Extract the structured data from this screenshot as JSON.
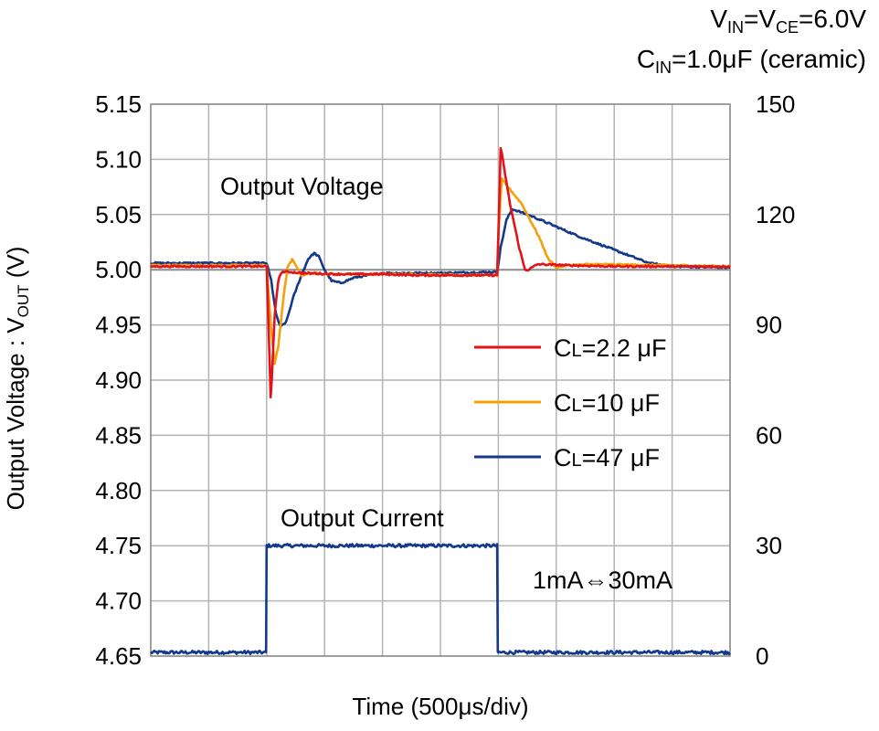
{
  "chart_data": {
    "type": "line",
    "conditions": {
      "line1": {
        "v": "V",
        "in": "IN",
        "eq1": "=V",
        "ce": "CE",
        "rest": "=6.0V"
      },
      "line2": {
        "c": "C",
        "in": "IN",
        "rest": "=1.0μF (ceramic)"
      }
    },
    "xlabel": "Time (500μs/div)",
    "ylabel": {
      "main": "Output Voltage : V",
      "sub": "OUT",
      "unit": " (V)"
    },
    "ylim": [
      4.65,
      5.15
    ],
    "y2lim": [
      0,
      150
    ],
    "yticks": [
      "5.15",
      "5.10",
      "5.05",
      "5.00",
      "4.95",
      "4.90",
      "4.85",
      "4.80",
      "4.75",
      "4.70",
      "4.65"
    ],
    "y2ticks": [
      "150",
      "120",
      "90",
      "60",
      "30",
      "0"
    ],
    "x_divisions": 10,
    "x_range_us": [
      0,
      5000
    ],
    "grid": true,
    "annotations": {
      "voltage": "Output Voltage",
      "current": "Output Current",
      "current_step": "1mA⇔30mA"
    },
    "series": [
      {
        "name": "CL=2.2 μF",
        "label_c": "C",
        "label_sub": "L",
        "label_rest": "=2.2 μF",
        "color": "#e3131b",
        "points": [
          [
            0,
            5.003
          ],
          [
            1000,
            5.003
          ],
          [
            1010,
            4.97
          ],
          [
            1025,
            4.92
          ],
          [
            1035,
            4.885
          ],
          [
            1045,
            4.9
          ],
          [
            1070,
            4.96
          ],
          [
            1100,
            4.99
          ],
          [
            1130,
            4.998
          ],
          [
            1200,
            4.998
          ],
          [
            1300,
            4.997
          ],
          [
            1600,
            4.996
          ],
          [
            2000,
            4.996
          ],
          [
            2300,
            4.995
          ],
          [
            2990,
            4.995
          ],
          [
            3005,
            5.05
          ],
          [
            3020,
            5.11
          ],
          [
            3030,
            5.105
          ],
          [
            3100,
            5.06
          ],
          [
            3180,
            5.02
          ],
          [
            3230,
            5.0
          ],
          [
            3260,
            5.0
          ],
          [
            3340,
            5.005
          ],
          [
            3600,
            5.004
          ],
          [
            4000,
            5.003
          ],
          [
            5000,
            5.003
          ]
        ]
      },
      {
        "name": "CL=10 μF",
        "label_c": "C",
        "label_sub": "L",
        "label_rest": "=10 μF",
        "color": "#f5a009",
        "points": [
          [
            0,
            5.004
          ],
          [
            1000,
            5.004
          ],
          [
            1010,
            4.99
          ],
          [
            1040,
            4.945
          ],
          [
            1070,
            4.915
          ],
          [
            1100,
            4.93
          ],
          [
            1140,
            4.97
          ],
          [
            1180,
            5.002
          ],
          [
            1220,
            5.009
          ],
          [
            1260,
            5.003
          ],
          [
            1300,
            4.995
          ],
          [
            1400,
            4.997
          ],
          [
            1600,
            4.996
          ],
          [
            2000,
            4.996
          ],
          [
            2990,
            4.995
          ],
          [
            3005,
            5.04
          ],
          [
            3030,
            5.082
          ],
          [
            3060,
            5.078
          ],
          [
            3200,
            5.06
          ],
          [
            3350,
            5.03
          ],
          [
            3430,
            5.01
          ],
          [
            3500,
            5.002
          ],
          [
            3600,
            5.004
          ],
          [
            3800,
            5.005
          ],
          [
            4500,
            5.004
          ],
          [
            5000,
            5.003
          ]
        ]
      },
      {
        "name": "CL=47 μF",
        "label_c": "C",
        "label_sub": "L",
        "label_rest": "=47 μF",
        "color": "#13388c",
        "points": [
          [
            0,
            5.006
          ],
          [
            1000,
            5.006
          ],
          [
            1040,
            4.99
          ],
          [
            1080,
            4.96
          ],
          [
            1120,
            4.948
          ],
          [
            1170,
            4.953
          ],
          [
            1230,
            4.975
          ],
          [
            1300,
            4.995
          ],
          [
            1360,
            5.01
          ],
          [
            1410,
            5.015
          ],
          [
            1450,
            5.012
          ],
          [
            1500,
            5.0
          ],
          [
            1560,
            4.99
          ],
          [
            1640,
            4.988
          ],
          [
            1760,
            4.993
          ],
          [
            2000,
            4.997
          ],
          [
            2500,
            4.997
          ],
          [
            2990,
            4.998
          ],
          [
            3020,
            5.02
          ],
          [
            3070,
            5.045
          ],
          [
            3120,
            5.055
          ],
          [
            3300,
            5.048
          ],
          [
            3700,
            5.03
          ],
          [
            4000,
            5.018
          ],
          [
            4300,
            5.006
          ],
          [
            4500,
            5.003
          ],
          [
            5000,
            5.002
          ]
        ]
      }
    ],
    "current_series": {
      "color": "#13388c",
      "points": [
        [
          0,
          1
        ],
        [
          995,
          1
        ],
        [
          1000,
          30
        ],
        [
          2990,
          30
        ],
        [
          2995,
          1
        ],
        [
          5000,
          1
        ]
      ]
    }
  }
}
